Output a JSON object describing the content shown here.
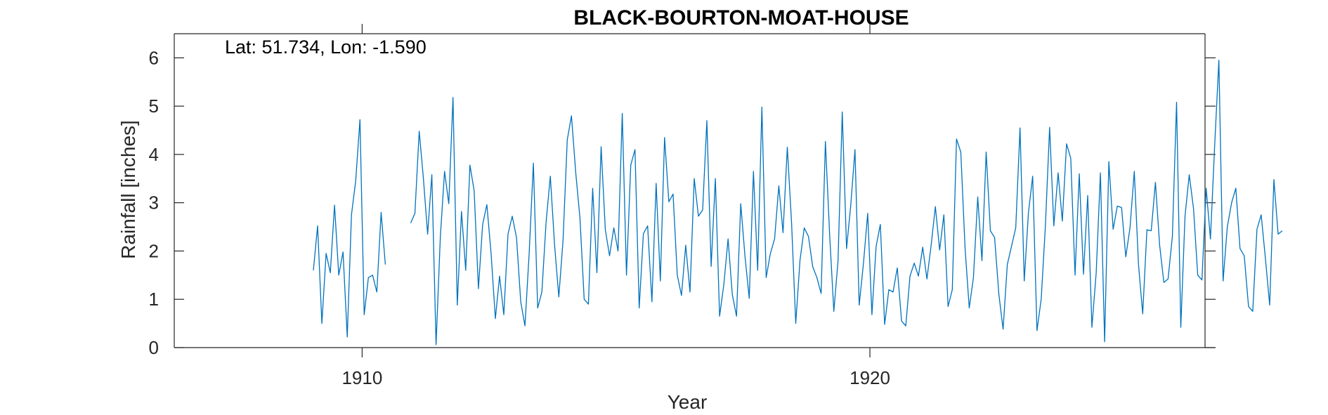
{
  "chart_data": {
    "type": "line",
    "title": "BLACK-BOURTON-MOAT-HOUSE",
    "annotation": "Lat: 51.734, Lon: -1.590",
    "xlabel": "Year",
    "ylabel": "Rainfall [inches]",
    "xlim": [
      1906.3,
      1926.6
    ],
    "ylim": [
      0,
      6.5
    ],
    "xticks": [
      1910,
      1920
    ],
    "yticks": [
      0,
      1,
      2,
      3,
      4,
      5,
      6
    ],
    "grid": false,
    "legend": "none",
    "colors": {
      "line": "#0072BD",
      "axes": "#262626"
    },
    "series": [
      {
        "x_start_year": 1909.04,
        "step_years": 0.08333,
        "values": [
          1.6,
          2.52,
          0.5,
          1.95,
          1.55,
          2.95,
          1.5,
          1.98,
          0.22,
          2.75,
          3.45,
          4.72,
          0.68,
          1.45,
          1.5,
          1.15,
          2.8,
          1.72,
          null,
          null,
          null,
          null,
          null,
          2.58,
          2.78,
          4.48,
          3.5,
          2.35,
          3.58,
          0.06,
          2.3,
          3.65,
          2.98,
          5.18,
          0.88,
          2.82,
          1.6,
          3.78,
          3.25,
          1.22,
          2.55,
          2.96,
          1.95,
          0.6,
          1.48,
          0.68,
          2.35,
          2.72,
          2.28,
          0.95,
          0.45,
          1.95,
          3.82,
          0.82,
          1.15,
          2.6,
          3.55,
          2.12,
          1.05,
          2.22,
          4.3,
          4.8,
          3.62,
          2.68,
          1.0,
          0.9,
          3.3,
          1.55,
          4.16,
          2.44,
          1.9,
          2.48,
          2.0,
          4.85,
          1.5,
          3.78,
          4.1,
          0.82,
          2.36,
          2.52,
          0.95,
          3.4,
          1.38,
          4.35,
          3.02,
          3.18,
          1.5,
          1.08,
          2.12,
          1.15,
          3.5,
          2.72,
          2.85,
          4.7,
          1.68,
          3.5,
          0.65,
          1.3,
          2.25,
          1.1,
          0.65,
          2.98,
          1.9,
          1.02,
          3.65,
          1.6,
          4.98,
          1.45,
          1.95,
          2.25,
          3.35,
          2.38,
          4.15,
          2.6,
          0.5,
          1.8,
          2.48,
          2.3,
          1.68,
          1.45,
          1.12,
          4.27,
          2.35,
          0.75,
          1.8,
          4.88,
          2.05,
          2.95,
          4.1,
          0.88,
          1.75,
          2.78,
          0.68,
          2.1,
          2.55,
          0.48,
          1.2,
          1.15,
          1.65,
          0.55,
          0.45,
          1.48,
          1.75,
          1.48,
          2.08,
          1.42,
          2.12,
          2.92,
          2.02,
          2.75,
          0.85,
          1.2,
          4.32,
          4.05,
          2.08,
          0.82,
          1.45,
          3.12,
          1.8,
          4.05,
          2.42,
          2.28,
          1.1,
          0.38,
          1.72,
          2.1,
          2.48,
          4.55,
          1.38,
          2.8,
          3.55,
          0.35,
          1.0,
          2.52,
          4.56,
          2.52,
          3.62,
          2.62,
          4.22,
          3.92,
          1.5,
          3.6,
          1.52,
          3.15,
          0.42,
          1.55,
          3.62,
          0.12,
          3.85,
          2.45,
          2.93,
          2.9,
          1.88,
          2.48,
          3.65,
          1.72,
          0.7,
          2.44,
          2.42,
          3.42,
          2.12,
          1.35,
          1.42,
          2.3,
          5.08,
          0.42,
          2.72,
          3.58,
          2.88,
          1.5,
          1.4,
          3.3,
          2.25,
          4.18,
          5.95,
          1.38,
          2.5,
          3.0,
          3.3,
          2.05,
          1.9,
          0.85,
          0.75,
          2.45,
          2.75,
          1.85,
          0.88,
          3.48,
          2.35,
          2.42
        ]
      }
    ]
  }
}
